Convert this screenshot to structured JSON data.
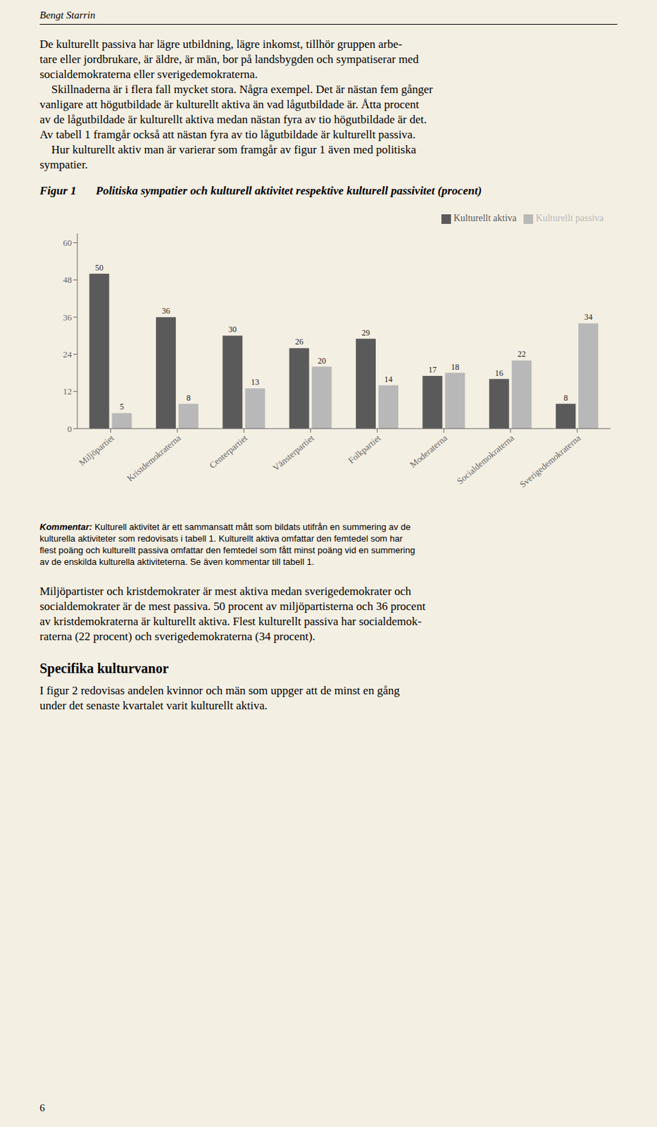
{
  "chart_data": {
    "type": "bar",
    "title": "Politiska sympatier och kulturell aktivitet respektive kulturell passivitet (procent)",
    "categories": [
      "Miljöpartiet",
      "Kristdemokraterna",
      "Centerpartiet",
      "Vänsterpartiet",
      "Folkpartiet",
      "Moderaterna",
      "Socialdemokraterna",
      "Sverigedemokraterna"
    ],
    "series": [
      {
        "name": "Kulturellt aktiva",
        "color": "#5a5a5a",
        "values": [
          50,
          36,
          30,
          26,
          29,
          17,
          16,
          8
        ]
      },
      {
        "name": "Kulturellt passiva",
        "color": "#b8b8b8",
        "values": [
          5,
          8,
          13,
          20,
          14,
          18,
          22,
          34
        ]
      }
    ],
    "ylim": [
      0,
      63
    ],
    "yticks": [
      0,
      12,
      24,
      36,
      48,
      60
    ],
    "grid": false,
    "legend": "upper right",
    "data_labels": true,
    "annotations": [
      "Bengt Starrin",
      "De kulturellt passiva har lägre utbildning, lägre inkomst, tillhör gruppen arbe-",
      "tare eller jordbrukare, är äldre, är män, bor på landsbygden och sympatiserar med",
      "socialdemokraterna eller sverigedemokraterna.",
      "    Skillnaderna är i flera fall mycket stora. Några exempel. Det är nästan fem gånger",
      "vanligare att högutbildade är kulturellt aktiva än vad lågutbildade är. Åtta procent",
      "av de lågutbildade är kulturellt aktiva medan nästan fyra av tio högutbildade är det.",
      "Av tabell 1 framgår också att nästan fyra av tio lågutbildade är kulturellt passiva.",
      "    Hur kulturellt aktiv man är varierar som framgår av figur 1 även med politiska",
      "sympatier.",
      "Figur 1",
      "Kommentar:",
      " Kulturell aktivitet är ett sammansatt mått som bildats utifrån en summering av de",
      "kulturella aktiviteter som redovisats i tabell 1. Kulturellt aktiva omfattar den femtedel som har",
      "flest poäng och kulturellt passiva omfattar den femtedel som fått minst poäng vid en summering",
      "av de enskilda kulturella aktiviteterna. Se även kommentar till tabell 1.",
      "Miljöpartister och kristdemokrater är mest aktiva medan sverigedemokrater och",
      "socialdemokrater är de mest passiva. 50 procent av miljöpartisterna och 36 procent",
      "av kristdemokraterna är kulturellt aktiva. Flest kulturellt passiva har socialdemok-",
      "raterna (22 procent) och sverigedemokraterna (34 procent).",
      "Specifika kulturvanor",
      "I figur 2 redovisas andelen kvinnor och män som uppger att de minst en gång",
      "under det senaste kvartalet varit kulturellt aktiva.",
      "6"
    ]
  }
}
